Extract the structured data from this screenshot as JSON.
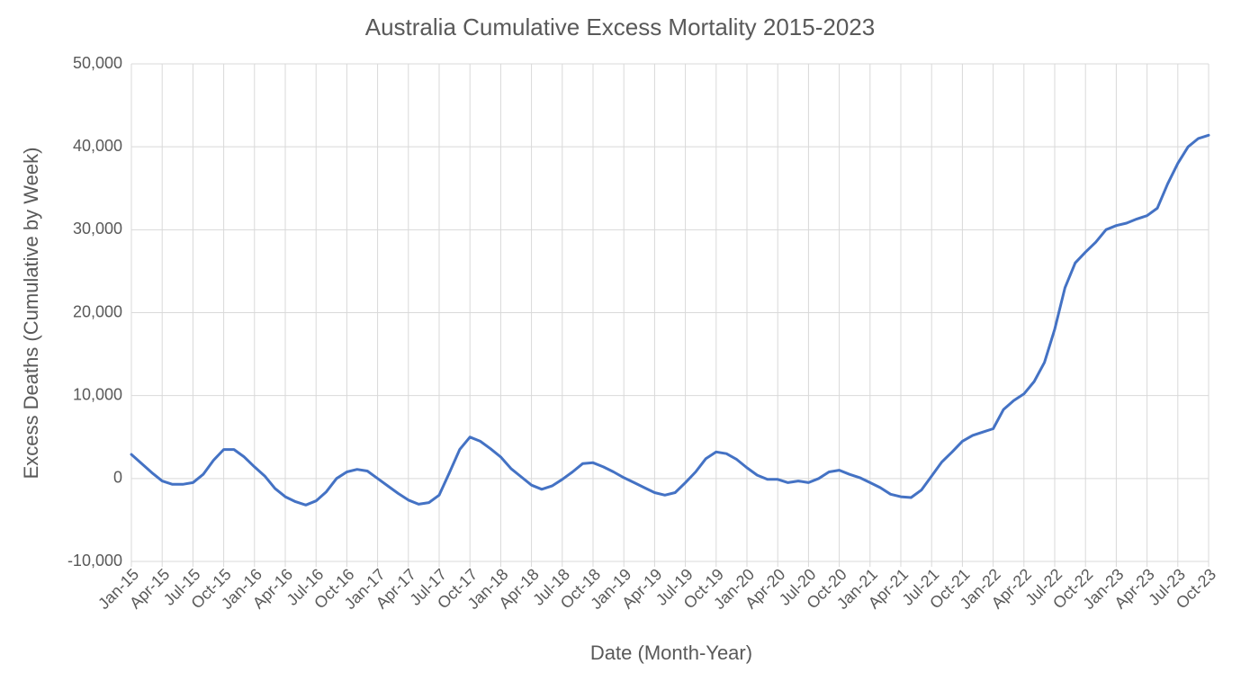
{
  "chart_data": {
    "type": "line",
    "title": "Australia Cumulative Excess Mortality 2015-2023",
    "x_label": "Date (Month-Year)",
    "y_label": "Excess Deaths (Cumulative by Week)",
    "categories": [
      "Jan-15",
      null,
      null,
      "Apr-15",
      null,
      null,
      "Jul-15",
      null,
      null,
      "Oct-15",
      null,
      null,
      "Jan-16",
      null,
      null,
      "Apr-16",
      null,
      null,
      "Jul-16",
      null,
      null,
      "Oct-16",
      null,
      null,
      "Jan-17",
      null,
      null,
      "Apr-17",
      null,
      null,
      "Jul-17",
      null,
      null,
      "Oct-17",
      null,
      null,
      "Jan-18",
      null,
      null,
      "Apr-18",
      null,
      null,
      "Jul-18",
      null,
      null,
      "Oct-18",
      null,
      null,
      "Jan-19",
      null,
      null,
      "Apr-19",
      null,
      null,
      "Jul-19",
      null,
      null,
      "Oct-19",
      null,
      null,
      "Jan-20",
      null,
      null,
      "Apr-20",
      null,
      null,
      "Jul-20",
      null,
      null,
      "Oct-20",
      null,
      null,
      "Jan-21",
      null,
      null,
      "Apr-21",
      null,
      null,
      "Jul-21",
      null,
      null,
      "Oct-21",
      null,
      null,
      "Jan-22",
      null,
      null,
      "Apr-22",
      null,
      null,
      "Jul-22",
      null,
      null,
      "Oct-22",
      null,
      null,
      "Jan-23",
      null,
      null,
      "Apr-23",
      null,
      null,
      "Jul-23",
      null,
      null,
      "Oct-23"
    ],
    "series": [
      {
        "color": "#4472c4",
        "values": [
          2900,
          1800,
          700,
          -300,
          -700,
          -700,
          -500,
          500,
          2200,
          3500,
          3500,
          2600,
          1400,
          300,
          -1200,
          -2200,
          -2800,
          -3200,
          -2700,
          -1600,
          0,
          800,
          1100,
          900,
          0,
          -900,
          -1800,
          -2600,
          -3100,
          -2900,
          -2000,
          700,
          3500,
          5000,
          4500,
          3600,
          2600,
          1200,
          200,
          -800,
          -1300,
          -900,
          -100,
          800,
          1800,
          1900,
          1400,
          800,
          100,
          -500,
          -1100,
          -1700,
          -2000,
          -1700,
          -500,
          800,
          2400,
          3200,
          3000,
          2300,
          1300,
          400,
          -100,
          -100,
          -500,
          -300,
          -500,
          0,
          800,
          1000,
          500,
          100,
          -500,
          -1100,
          -1900,
          -2200,
          -2300,
          -1400,
          300,
          2000,
          3200,
          4500,
          5200,
          5600,
          6000,
          8300,
          9400,
          10200,
          11700,
          14000,
          18000,
          23000,
          26000,
          27300,
          28500,
          30000,
          30500,
          30800,
          31300,
          31700,
          32600,
          35500,
          38000,
          40000,
          41000,
          41400
        ]
      }
    ],
    "ylim": [
      -10000,
      50000
    ],
    "yticks": [
      {
        "value": -10000,
        "label": "-10,000"
      },
      0,
      {
        "value": 10000,
        "label": "10,000"
      },
      {
        "value": 20000,
        "label": "20,000"
      },
      {
        "value": 30000,
        "label": "30,000"
      },
      {
        "value": 40000,
        "label": "40,000"
      },
      {
        "value": 50000,
        "label": "50,000"
      }
    ],
    "grid": true
  }
}
